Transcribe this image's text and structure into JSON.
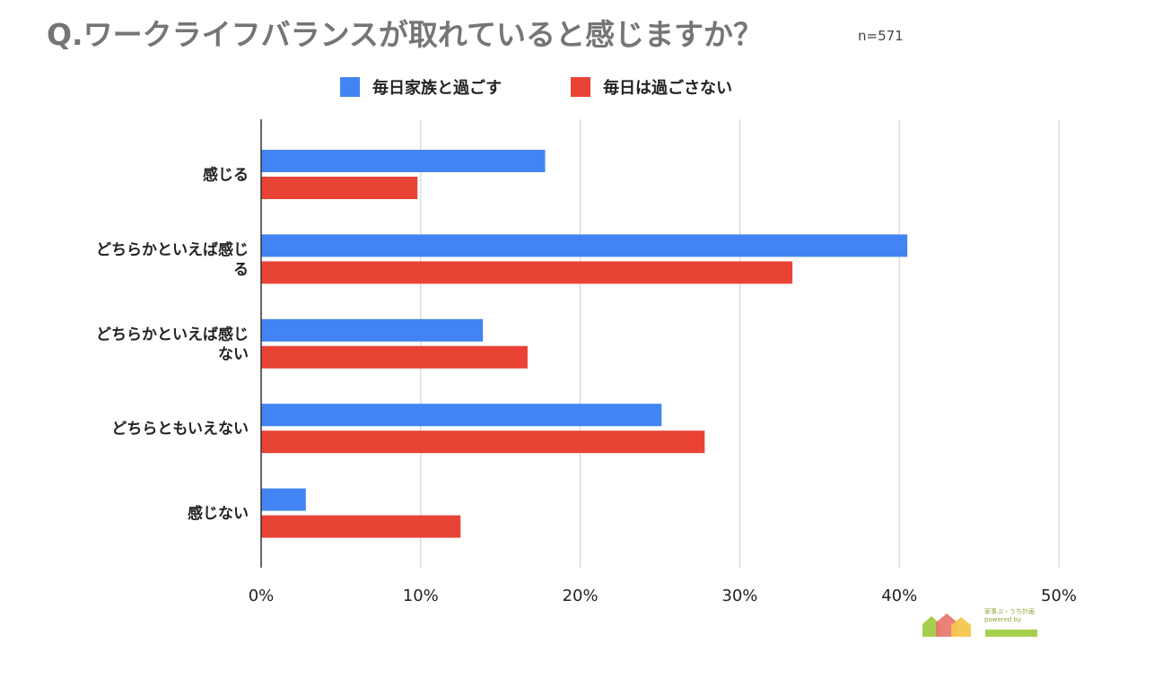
{
  "title": "Q.ワークライフバランスが取れていると感じますか？",
  "sample_size": "n=571",
  "logo": {
    "text": "「家事ぶ・うち計画」 powered by AZWAY",
    "colors": [
      "#a5cf4c",
      "#e9746a",
      "#f3c74e"
    ]
  },
  "colors": {
    "series1": "#4284f3",
    "series2": "#e94335",
    "grid": "#cccccc",
    "axis": "#333333"
  },
  "chart_data": {
    "type": "bar",
    "orientation": "horizontal",
    "title": "Q.ワークライフバランスが取れていると感じますか？",
    "categories": [
      [
        "感じる"
      ],
      [
        "どちらかといえば感じ",
        "る"
      ],
      [
        "どちらかといえば感じ",
        "ない"
      ],
      [
        "どちらともいえない"
      ],
      [
        "感じない"
      ]
    ],
    "series": [
      {
        "name": "毎日家族と過ごす",
        "values": [
          17.8,
          40.5,
          13.9,
          25.1,
          2.8
        ]
      },
      {
        "name": "毎日は過ごさない",
        "values": [
          9.8,
          33.3,
          16.7,
          27.8,
          12.5
        ]
      }
    ],
    "xlim": [
      0,
      50
    ],
    "xticks": [
      "0%",
      "10%",
      "20%",
      "30%",
      "40%",
      "50%"
    ],
    "grid": true,
    "legend_position": "top"
  }
}
